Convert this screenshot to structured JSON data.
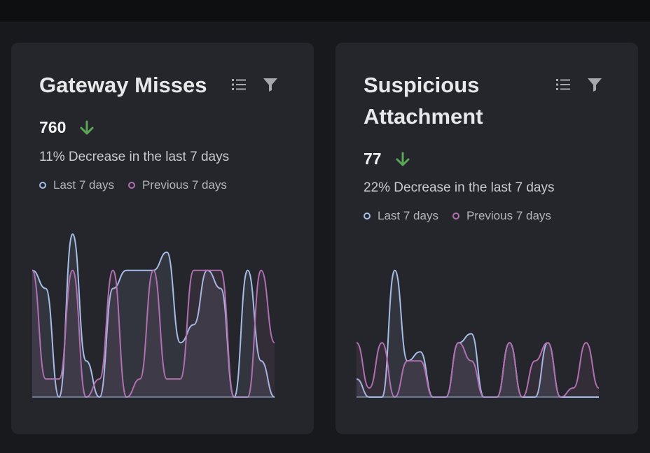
{
  "colors": {
    "last": "#a6bde6",
    "previous": "#b070b0",
    "decrease_arrow": "#5ba557"
  },
  "cards": [
    {
      "title": "Gateway Misses",
      "value": "760",
      "trend_icon": "arrow-down-icon",
      "description": "11% Decrease in the last 7 days",
      "legend": [
        "Last 7 days",
        "Previous 7 days"
      ],
      "icons": [
        "list-icon",
        "filter-icon"
      ]
    },
    {
      "title": "Suspicious Attachment",
      "value": "77",
      "trend_icon": "arrow-down-icon",
      "description": "22% Decrease in the last 7 days",
      "legend": [
        "Last 7 days",
        "Previous 7 days"
      ],
      "icons": [
        "list-icon",
        "filter-icon"
      ]
    }
  ],
  "chart_data": [
    {
      "type": "area",
      "ylim": [
        0,
        100
      ],
      "grid": false,
      "series": [
        {
          "name": "Last 7 days",
          "values": [
            70,
            60,
            0,
            90,
            20,
            0,
            60,
            70,
            70,
            70,
            80,
            30,
            40,
            70,
            60,
            0,
            70,
            20,
            0
          ]
        },
        {
          "name": "Previous 7 days",
          "values": [
            70,
            10,
            10,
            70,
            0,
            10,
            70,
            0,
            10,
            70,
            10,
            10,
            70,
            70,
            70,
            0,
            0,
            70,
            30
          ]
        }
      ]
    },
    {
      "type": "area",
      "ylim": [
        0,
        100
      ],
      "grid": false,
      "series": [
        {
          "name": "Last 7 days",
          "values": [
            10,
            0,
            0,
            70,
            20,
            25,
            0,
            0,
            30,
            35,
            0,
            0,
            30,
            0,
            0,
            30,
            0,
            0,
            0,
            0
          ]
        },
        {
          "name": "Previous 7 days",
          "values": [
            30,
            5,
            30,
            0,
            20,
            20,
            0,
            0,
            30,
            20,
            0,
            0,
            30,
            0,
            20,
            30,
            0,
            5,
            30,
            5
          ]
        }
      ]
    }
  ]
}
